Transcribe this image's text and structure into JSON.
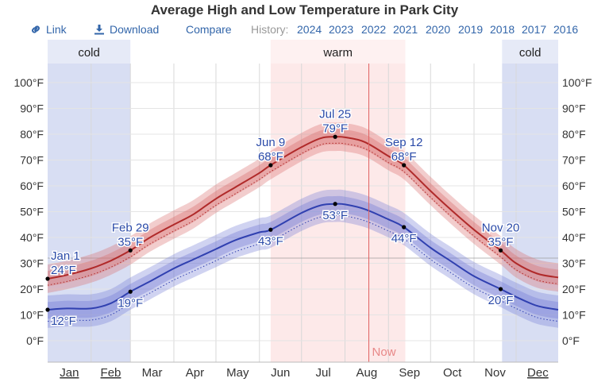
{
  "title": "Average High and Low Temperature in Park City",
  "toolbar": {
    "link_label": "Link",
    "link_icon": "link-icon",
    "download_label": "Download",
    "download_icon": "download-icon",
    "compare_label": "Compare",
    "history_label": "History:",
    "years": [
      "2024",
      "2023",
      "2022",
      "2021",
      "2020",
      "2019",
      "2018",
      "2017",
      "2016"
    ]
  },
  "chart_data": {
    "type": "line",
    "title": "Average High and Low Temperature in Park City",
    "x_unit": "day of year",
    "months": [
      "Jan",
      "Feb",
      "Mar",
      "Apr",
      "May",
      "Jun",
      "Jul",
      "Aug",
      "Sep",
      "Oct",
      "Nov",
      "Dec"
    ],
    "underlined_months": [
      "Jan",
      "Feb",
      "Dec"
    ],
    "ylim": [
      -10,
      105
    ],
    "y_ticks": [
      0,
      10,
      20,
      30,
      40,
      50,
      60,
      70,
      80,
      90,
      100
    ],
    "y_tick_labels": [
      "0°F",
      "10°F",
      "20°F",
      "30°F",
      "40°F",
      "50°F",
      "60°F",
      "70°F",
      "80°F",
      "90°F",
      "100°F"
    ],
    "freezing_line": 32,
    "seasons": [
      {
        "label": "cold",
        "start_day": 1,
        "end_day": 60,
        "color": "#c8d0ee"
      },
      {
        "label": "warm",
        "start_day": 160,
        "end_day": 256,
        "color": "#fce0e0"
      },
      {
        "label": "cold",
        "start_day": 325,
        "end_day": 365,
        "color": "#c8d0ee"
      }
    ],
    "now_label": "Now",
    "now_day": 230,
    "series": [
      {
        "key": "high",
        "color": "#b02a2a",
        "band_color": "#d97070",
        "x": [
          1,
          15,
          32,
          46,
          60,
          74,
          91,
          105,
          121,
          135,
          152,
          160,
          182,
          196,
          206,
          213,
          227,
          244,
          255,
          274,
          288,
          305,
          324,
          335,
          350,
          365
        ],
        "y": [
          24,
          25.5,
          28,
          31,
          35,
          40,
          45,
          49,
          55,
          59.5,
          65,
          68,
          75,
          78.5,
          79,
          78.8,
          77,
          71.5,
          68,
          58,
          51,
          43,
          35,
          30,
          26,
          24.5
        ],
        "p10_offset": -5.5,
        "p90_offset": 5.5,
        "p25_offset": -3,
        "p75_offset": 3,
        "dotted_offset": -2.5
      },
      {
        "key": "low",
        "color": "#3040b0",
        "band_color": "#7880d8",
        "x": [
          1,
          15,
          32,
          46,
          60,
          74,
          91,
          105,
          121,
          135,
          152,
          160,
          182,
          196,
          206,
          213,
          227,
          244,
          255,
          274,
          288,
          305,
          324,
          335,
          350,
          365
        ],
        "y": [
          12,
          12.5,
          12.5,
          14.5,
          19,
          23,
          28,
          31.5,
          35.5,
          39,
          42,
          43,
          49.5,
          52.5,
          53,
          52.8,
          51,
          47,
          44,
          36,
          31,
          25,
          20,
          17,
          13.5,
          12
        ],
        "p10_offset": -7,
        "p90_offset": 5.5,
        "p25_offset": -3.5,
        "p75_offset": 3,
        "dotted_offset": -4.5
      }
    ],
    "annotations": [
      {
        "series": "high",
        "day": 1,
        "value": 24,
        "date": "Jan 1",
        "text": "24°F"
      },
      {
        "series": "low",
        "day": 1,
        "value": 12,
        "date": "",
        "text": "12°F"
      },
      {
        "series": "high",
        "day": 60,
        "value": 35,
        "date": "Feb 29",
        "text": "35°F"
      },
      {
        "series": "low",
        "day": 60,
        "value": 19,
        "date": "",
        "text": "19°F"
      },
      {
        "series": "high",
        "day": 160,
        "value": 68,
        "date": "Jun 9",
        "text": "68°F"
      },
      {
        "series": "low",
        "day": 160,
        "value": 43,
        "date": "",
        "text": "43°F"
      },
      {
        "series": "high",
        "day": 206,
        "value": 79,
        "date": "Jul 25",
        "text": "79°F"
      },
      {
        "series": "low",
        "day": 206,
        "value": 53,
        "date": "",
        "text": "53°F"
      },
      {
        "series": "high",
        "day": 255,
        "value": 68,
        "date": "Sep 12",
        "text": "68°F"
      },
      {
        "series": "low",
        "day": 255,
        "value": 44,
        "date": "",
        "text": "44°F"
      },
      {
        "series": "high",
        "day": 324,
        "value": 35,
        "date": "Nov 20",
        "text": "35°F"
      },
      {
        "series": "low",
        "day": 324,
        "value": 20,
        "date": "",
        "text": "20°F"
      }
    ]
  }
}
